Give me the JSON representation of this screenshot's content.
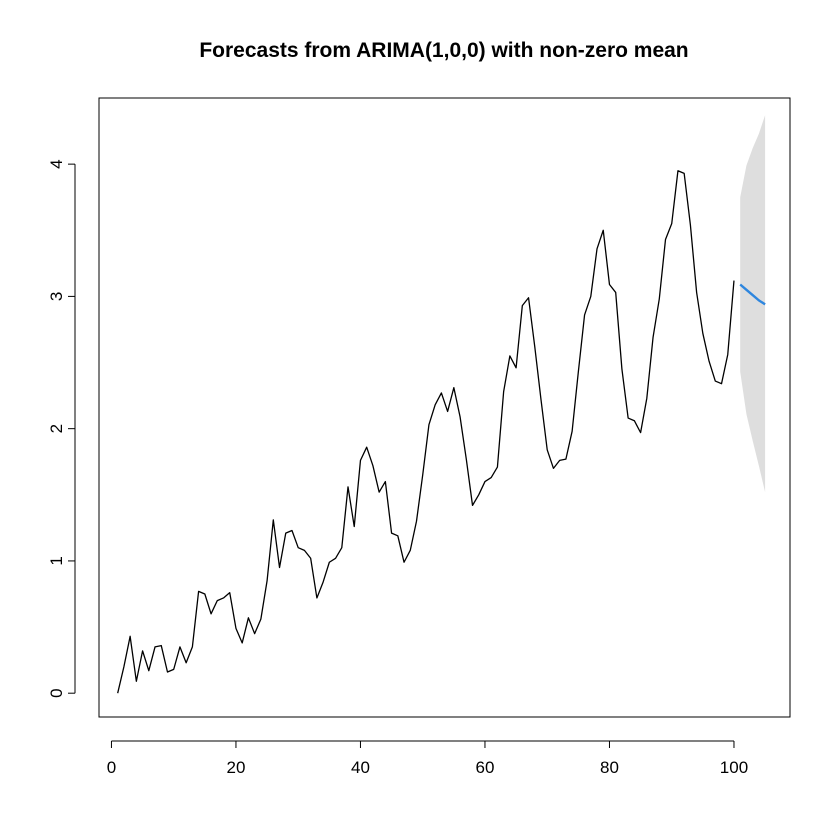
{
  "chart_data": {
    "type": "line",
    "title": "Forecasts from ARIMA(1,0,0) with non-zero mean",
    "xlabel": "",
    "ylabel": "",
    "xlim": [
      -2,
      109
    ],
    "ylim": [
      -0.18,
      4.5
    ],
    "x_ticks": [
      0,
      20,
      40,
      60,
      80,
      100
    ],
    "y_ticks": [
      0,
      1,
      2,
      3,
      4
    ],
    "grid": false,
    "legend": "none",
    "colors": {
      "history": "#000000",
      "forecast": "#2e86de",
      "interval": "#dedede"
    },
    "series": [
      {
        "x": [
          1,
          2,
          3,
          4,
          5,
          6,
          7,
          8,
          9,
          10,
          11,
          12,
          13,
          14,
          15,
          16,
          17,
          18,
          19,
          20,
          21,
          22,
          23,
          24,
          25,
          26,
          27,
          28,
          29,
          30,
          31,
          32,
          33,
          34,
          35,
          36,
          37,
          38,
          39,
          40,
          41,
          42,
          43,
          44,
          45,
          46,
          47,
          48,
          49,
          50,
          51,
          52,
          53,
          54,
          55,
          56,
          57,
          58,
          59,
          60,
          61,
          62,
          63,
          64,
          65,
          66,
          67,
          68,
          69,
          70,
          71,
          72,
          73,
          74,
          75,
          76,
          77,
          78,
          79,
          80,
          81,
          82,
          83,
          84,
          85,
          86,
          87,
          88,
          89,
          90,
          91,
          92,
          93,
          94,
          95,
          96,
          97,
          98,
          99,
          100
        ],
        "values": [
          0.0,
          0.2,
          0.43,
          0.09,
          0.32,
          0.17,
          0.35,
          0.36,
          0.16,
          0.18,
          0.35,
          0.23,
          0.35,
          0.77,
          0.75,
          0.6,
          0.7,
          0.72,
          0.76,
          0.49,
          0.38,
          0.57,
          0.45,
          0.56,
          0.85,
          1.31,
          0.95,
          1.21,
          1.23,
          1.1,
          1.08,
          1.02,
          0.72,
          0.84,
          0.99,
          1.02,
          1.1,
          1.56,
          1.26,
          1.76,
          1.86,
          1.72,
          1.52,
          1.6,
          1.21,
          1.19,
          0.99,
          1.08,
          1.3,
          1.65,
          2.03,
          2.18,
          2.27,
          2.13,
          2.31,
          2.09,
          1.77,
          1.42,
          1.5,
          1.6,
          1.63,
          1.71,
          2.28,
          2.55,
          2.46,
          2.93,
          2.99,
          2.62,
          2.22,
          1.84,
          1.7,
          1.76,
          1.77,
          1.98,
          2.43,
          2.86,
          3.0,
          3.36,
          3.5,
          3.09,
          3.03,
          2.45,
          2.08,
          2.06,
          1.97,
          2.23,
          2.69,
          2.98,
          3.43,
          3.55,
          3.95,
          3.93,
          3.54,
          3.03,
          2.72,
          2.51,
          2.36,
          2.34,
          2.56,
          3.12
        ]
      },
      {
        "x": [
          101,
          102,
          103,
          104,
          105
        ],
        "values": [
          3.09,
          3.05,
          3.01,
          2.97,
          2.94
        ]
      }
    ],
    "interval": {
      "x": [
        101,
        102,
        103,
        104,
        105
      ],
      "lower": [
        2.43,
        2.11,
        1.91,
        1.72,
        1.52
      ],
      "upper": [
        3.75,
        3.99,
        4.12,
        4.23,
        4.37
      ]
    }
  }
}
